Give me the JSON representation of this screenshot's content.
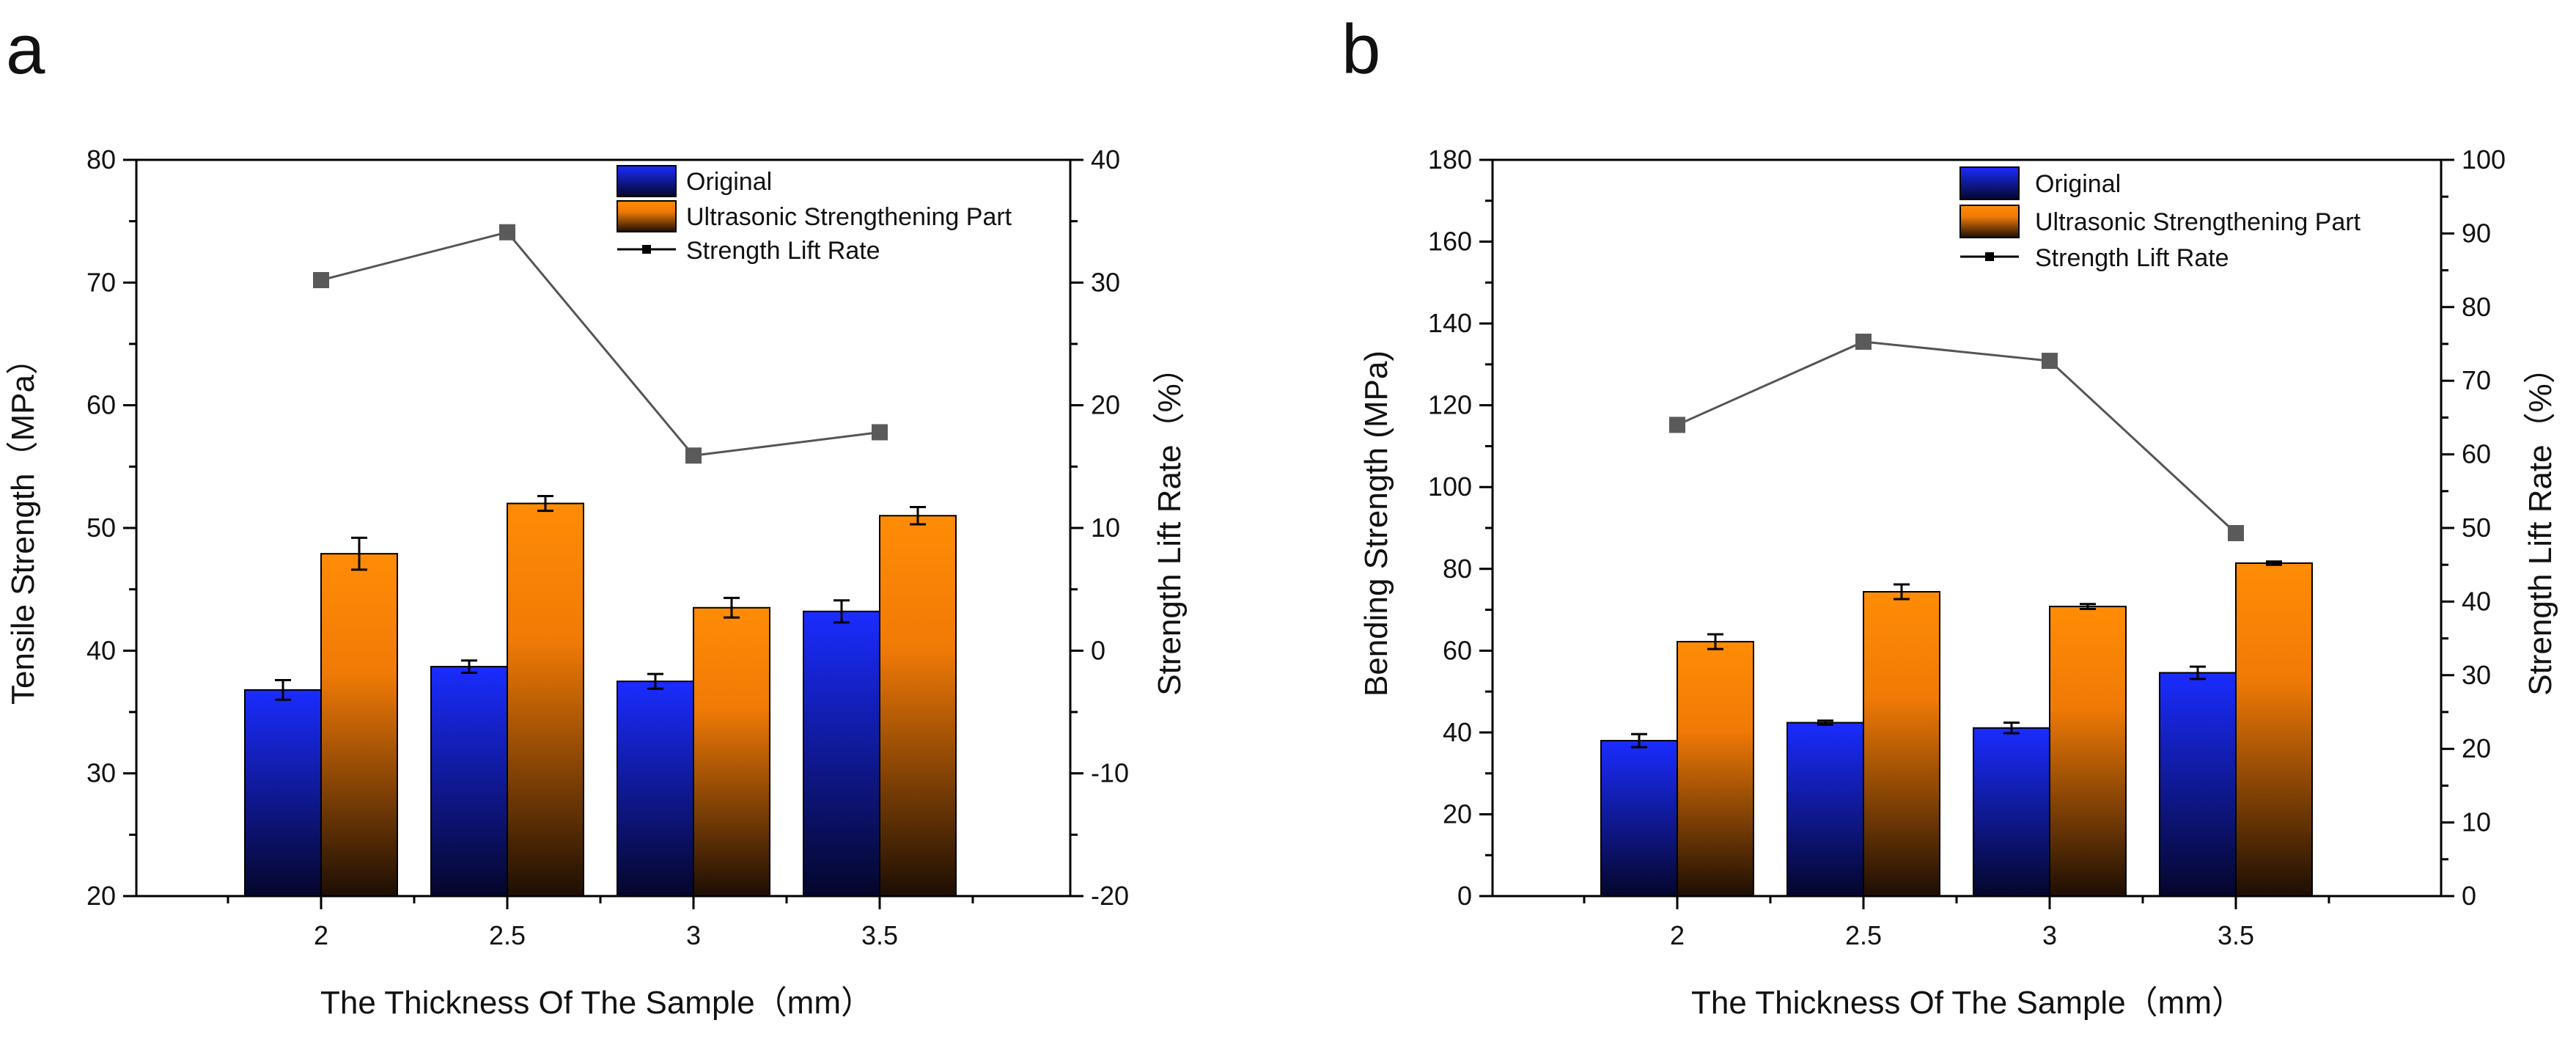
{
  "chart_data": [
    {
      "panel_label": "a",
      "type": "bar",
      "xlabel": "The Thickness Of The Sample（mm）",
      "ylabel": "Tensile Strength（MPa）",
      "y2label": "Strength Lift Rate（%）",
      "categories": [
        "2",
        "2.5",
        "3",
        "3.5"
      ],
      "ylim": [
        20,
        80
      ],
      "yticks": [
        20,
        30,
        40,
        50,
        60,
        70,
        80
      ],
      "y2lim": [
        -20,
        40
      ],
      "y2ticks": [
        -20,
        -10,
        0,
        10,
        20,
        30,
        40
      ],
      "series": [
        {
          "name": "Original",
          "values": [
            36.8,
            38.7,
            37.5,
            43.2
          ],
          "errors": [
            0.8,
            0.5,
            0.6,
            0.9
          ]
        },
        {
          "name": "Ultrasonic Strengthening Part",
          "values": [
            47.9,
            52.0,
            43.5,
            51.0
          ],
          "errors": [
            1.3,
            0.6,
            0.8,
            0.7
          ]
        }
      ],
      "line_series": {
        "name": "Strength Lift Rate",
        "axis": "right",
        "values": [
          30.2,
          34.1,
          15.9,
          17.8
        ]
      },
      "legend_position": "top-right"
    },
    {
      "panel_label": "b",
      "type": "bar",
      "xlabel": "The Thickness Of The Sample（mm）",
      "ylabel": "Bending Strength (MPa)",
      "y2label": "Strength Lift Rate（%）",
      "categories": [
        "2",
        "2.5",
        "3",
        "3.5"
      ],
      "ylim": [
        0,
        180
      ],
      "yticks": [
        0,
        20,
        40,
        60,
        80,
        100,
        120,
        140,
        160,
        180
      ],
      "y2lim": [
        0,
        100
      ],
      "y2ticks": [
        0,
        10,
        20,
        30,
        40,
        50,
        60,
        70,
        80,
        90,
        100
      ],
      "series": [
        {
          "name": "Original",
          "values": [
            38.0,
            42.4,
            41.1,
            54.6
          ],
          "errors": [
            1.6,
            0.5,
            1.3,
            1.5
          ]
        },
        {
          "name": "Ultrasonic Strengthening Part",
          "values": [
            62.2,
            74.4,
            70.8,
            81.4
          ],
          "errors": [
            1.8,
            1.8,
            0.6,
            0.4
          ]
        }
      ],
      "line_series": {
        "name": "Strength Lift Rate",
        "axis": "right",
        "values": [
          64.0,
          75.3,
          72.7,
          49.3
        ]
      },
      "legend_position": "top-right"
    }
  ],
  "colors": {
    "original_top": "#1a2cff",
    "original_bottom": "#05062a",
    "strengthened_top": "#ff8c05",
    "strengthened_bottom": "#1c0e04",
    "line": "#555555",
    "marker": "#5a5a5a",
    "axis": "#000000"
  }
}
